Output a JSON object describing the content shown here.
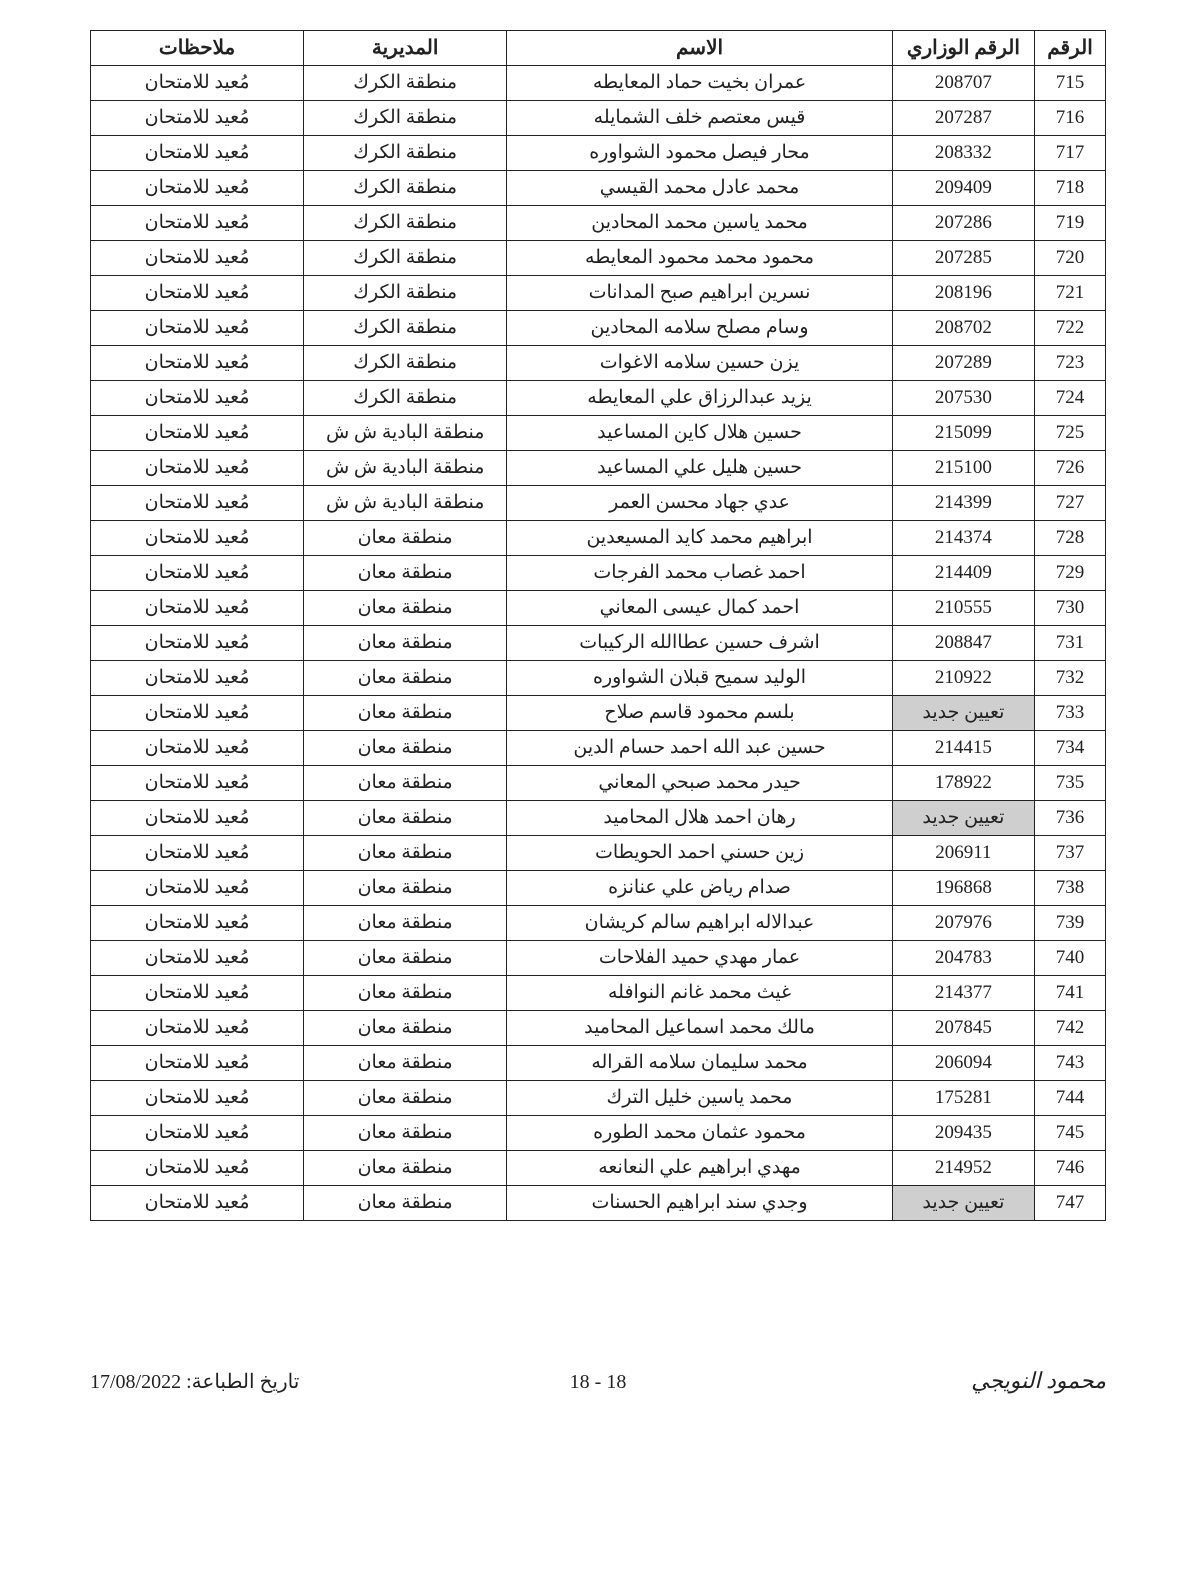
{
  "table": {
    "columns": [
      "الرقم",
      "الرقم الوزاري",
      "الاسم",
      "المديرية",
      "ملاحظات"
    ],
    "column_widths_pct": [
      7,
      14,
      38,
      20,
      21
    ],
    "border_color": "#222222",
    "header_fontsize": 20,
    "cell_fontsize": 19,
    "highlight_bg": "#cfcfcf",
    "rows": [
      {
        "num": "715",
        "min": "208707",
        "name": "عمران بخيت حماد المعايطه",
        "dir": "منطقة الكرك",
        "notes": "مُعيد للامتحان",
        "hl": false
      },
      {
        "num": "716",
        "min": "207287",
        "name": "قيس معتصم خلف الشمايله",
        "dir": "منطقة الكرك",
        "notes": "مُعيد للامتحان",
        "hl": false
      },
      {
        "num": "717",
        "min": "208332",
        "name": "محار فيصل محمود الشواوره",
        "dir": "منطقة الكرك",
        "notes": "مُعيد للامتحان",
        "hl": false
      },
      {
        "num": "718",
        "min": "209409",
        "name": "محمد عادل محمد القيسي",
        "dir": "منطقة الكرك",
        "notes": "مُعيد للامتحان",
        "hl": false
      },
      {
        "num": "719",
        "min": "207286",
        "name": "محمد ياسين محمد المحادين",
        "dir": "منطقة الكرك",
        "notes": "مُعيد للامتحان",
        "hl": false
      },
      {
        "num": "720",
        "min": "207285",
        "name": "محمود محمد محمود المعايطه",
        "dir": "منطقة الكرك",
        "notes": "مُعيد للامتحان",
        "hl": false
      },
      {
        "num": "721",
        "min": "208196",
        "name": "نسرين ابراهيم صبح المدانات",
        "dir": "منطقة الكرك",
        "notes": "مُعيد للامتحان",
        "hl": false
      },
      {
        "num": "722",
        "min": "208702",
        "name": "وسام مصلح سلامه المحادين",
        "dir": "منطقة الكرك",
        "notes": "مُعيد للامتحان",
        "hl": false
      },
      {
        "num": "723",
        "min": "207289",
        "name": "يزن حسين سلامه الاغوات",
        "dir": "منطقة الكرك",
        "notes": "مُعيد للامتحان",
        "hl": false
      },
      {
        "num": "724",
        "min": "207530",
        "name": "يزيد عبدالرزاق علي المعايطه",
        "dir": "منطقة الكرك",
        "notes": "مُعيد للامتحان",
        "hl": false
      },
      {
        "num": "725",
        "min": "215099",
        "name": "حسين هلال كاين المساعيد",
        "dir": "منطقة البادية ش ش",
        "notes": "مُعيد للامتحان",
        "hl": false
      },
      {
        "num": "726",
        "min": "215100",
        "name": "حسين هليل علي المساعيد",
        "dir": "منطقة البادية ش ش",
        "notes": "مُعيد للامتحان",
        "hl": false
      },
      {
        "num": "727",
        "min": "214399",
        "name": "عدي جهاد محسن العمر",
        "dir": "منطقة البادية ش ش",
        "notes": "مُعيد للامتحان",
        "hl": false
      },
      {
        "num": "728",
        "min": "214374",
        "name": "ابراهيم محمد كايد المسيعدين",
        "dir": "منطقة معان",
        "notes": "مُعيد للامتحان",
        "hl": false
      },
      {
        "num": "729",
        "min": "214409",
        "name": "احمد غصاب محمد الفرجات",
        "dir": "منطقة معان",
        "notes": "مُعيد للامتحان",
        "hl": false
      },
      {
        "num": "730",
        "min": "210555",
        "name": "احمد كمال عيسى المعاني",
        "dir": "منطقة معان",
        "notes": "مُعيد للامتحان",
        "hl": false
      },
      {
        "num": "731",
        "min": "208847",
        "name": "اشرف حسين عطاالله الركيبات",
        "dir": "منطقة معان",
        "notes": "مُعيد للامتحان",
        "hl": false
      },
      {
        "num": "732",
        "min": "210922",
        "name": "الوليد سميح قبلان الشواوره",
        "dir": "منطقة معان",
        "notes": "مُعيد للامتحان",
        "hl": false
      },
      {
        "num": "733",
        "min": "تعيين جديد",
        "name": "بلسم محمود قاسم صلاح",
        "dir": "منطقة معان",
        "notes": "مُعيد للامتحان",
        "hl": true
      },
      {
        "num": "734",
        "min": "214415",
        "name": "حسين عبد الله احمد حسام الدين",
        "dir": "منطقة معان",
        "notes": "مُعيد للامتحان",
        "hl": false
      },
      {
        "num": "735",
        "min": "178922",
        "name": "حيدر محمد صبحي المعاني",
        "dir": "منطقة معان",
        "notes": "مُعيد للامتحان",
        "hl": false
      },
      {
        "num": "736",
        "min": "تعيين جديد",
        "name": "رهان احمد هلال المحاميد",
        "dir": "منطقة معان",
        "notes": "مُعيد للامتحان",
        "hl": true
      },
      {
        "num": "737",
        "min": "206911",
        "name": "زين حسني احمد الحويطات",
        "dir": "منطقة معان",
        "notes": "مُعيد للامتحان",
        "hl": false
      },
      {
        "num": "738",
        "min": "196868",
        "name": "صدام رياض علي عنانزه",
        "dir": "منطقة معان",
        "notes": "مُعيد للامتحان",
        "hl": false
      },
      {
        "num": "739",
        "min": "207976",
        "name": "عبدالاله ابراهيم سالم كريشان",
        "dir": "منطقة معان",
        "notes": "مُعيد للامتحان",
        "hl": false
      },
      {
        "num": "740",
        "min": "204783",
        "name": "عمار مهدي حميد الفلاحات",
        "dir": "منطقة معان",
        "notes": "مُعيد للامتحان",
        "hl": false
      },
      {
        "num": "741",
        "min": "214377",
        "name": "غيث محمد غانم النوافله",
        "dir": "منطقة معان",
        "notes": "مُعيد للامتحان",
        "hl": false
      },
      {
        "num": "742",
        "min": "207845",
        "name": "مالك محمد اسماعيل المحاميد",
        "dir": "منطقة معان",
        "notes": "مُعيد للامتحان",
        "hl": false
      },
      {
        "num": "743",
        "min": "206094",
        "name": "محمد سليمان سلامه القراله",
        "dir": "منطقة معان",
        "notes": "مُعيد للامتحان",
        "hl": false
      },
      {
        "num": "744",
        "min": "175281",
        "name": "محمد ياسين خليل الترك",
        "dir": "منطقة معان",
        "notes": "مُعيد للامتحان",
        "hl": false
      },
      {
        "num": "745",
        "min": "209435",
        "name": "محمود عثمان محمد الطوره",
        "dir": "منطقة معان",
        "notes": "مُعيد للامتحان",
        "hl": false
      },
      {
        "num": "746",
        "min": "214952",
        "name": "مهدي ابراهيم علي النعانعه",
        "dir": "منطقة معان",
        "notes": "مُعيد للامتحان",
        "hl": false
      },
      {
        "num": "747",
        "min": "تعيين جديد",
        "name": "وجدي سند ابراهيم الحسنات",
        "dir": "منطقة معان",
        "notes": "مُعيد للامتحان",
        "hl": true
      }
    ]
  },
  "footer": {
    "signature": "محمود النويجي",
    "page_number": "18 - 18",
    "print_date_label": "تاريخ الطباعة:",
    "print_date_value": "17/08/2022"
  }
}
